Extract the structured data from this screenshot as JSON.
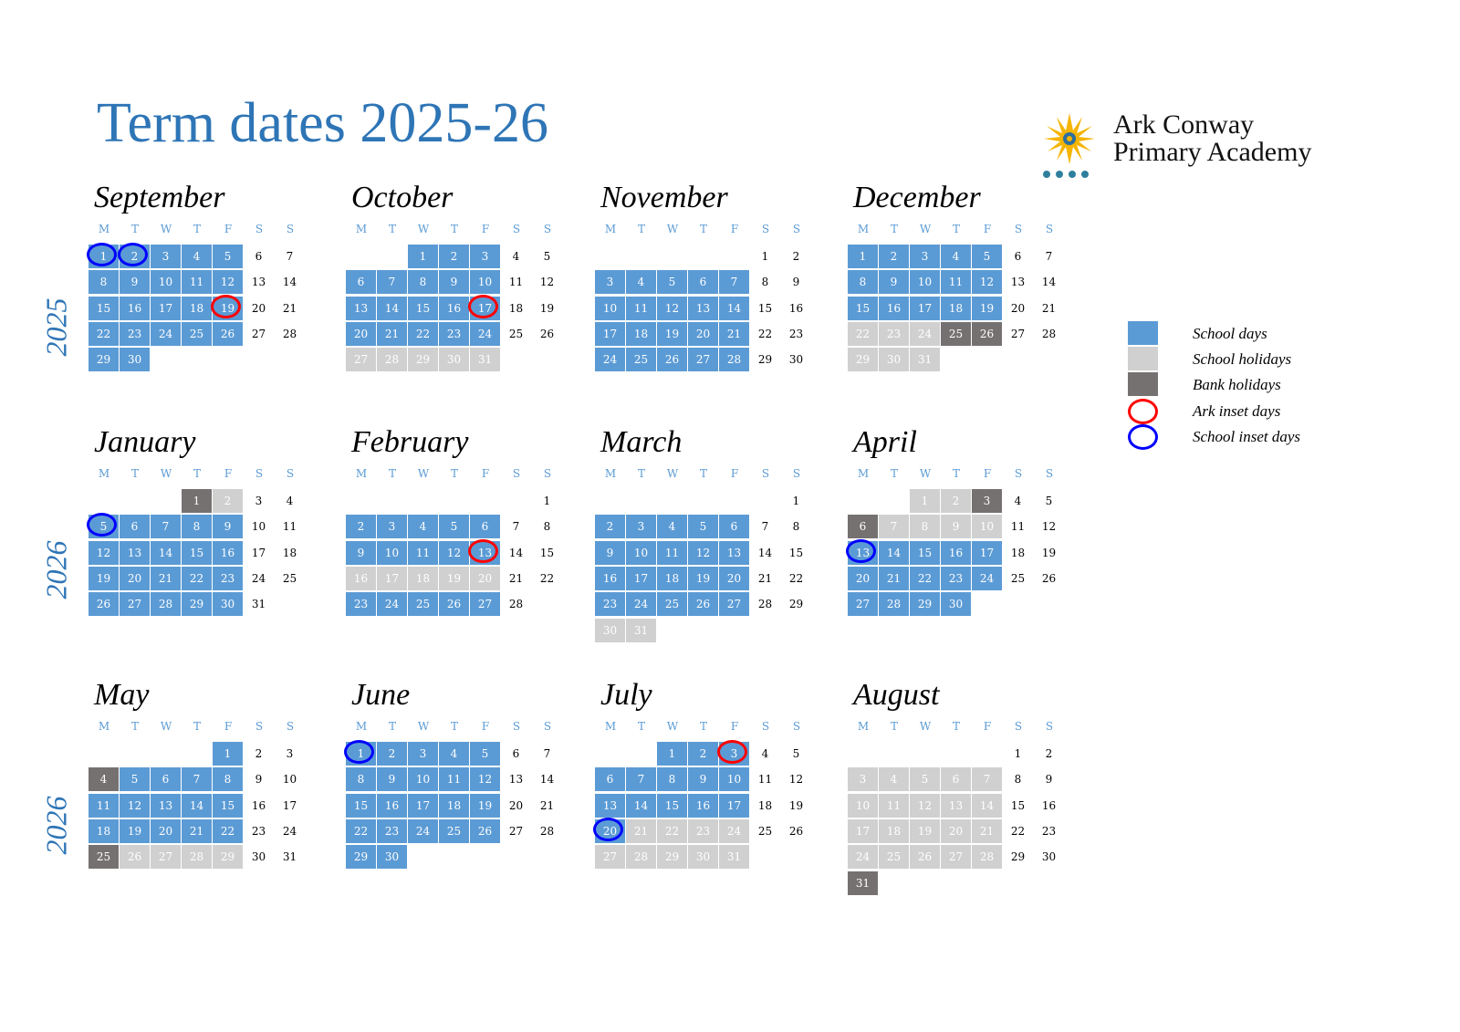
{
  "title": "Term dates 2025-26",
  "logo": {
    "line1": "Ark Conway",
    "line2": "Primary Academy"
  },
  "colors": {
    "school": "#5b9bd5",
    "holiday": "#d0d0d0",
    "bank": "#767171",
    "ark_inset": "#ff0000",
    "school_inset": "#0000ff",
    "title": "#2e75b6"
  },
  "weekdays": [
    "M",
    "T",
    "W",
    "T",
    "F",
    "S",
    "S"
  ],
  "years": [
    "2025",
    "2026",
    "2026"
  ],
  "legend": [
    {
      "label": "School days",
      "type": "school"
    },
    {
      "label": "School holidays",
      "type": "holiday"
    },
    {
      "label": "Bank holidays",
      "type": "bank"
    },
    {
      "label": "Ark inset days",
      "type": "ark_inset"
    },
    {
      "label": "School inset days",
      "type": "school_inset"
    }
  ],
  "months": [
    {
      "name": "September",
      "offset": 0,
      "days": 30,
      "holidays": [],
      "bank": [],
      "ark_inset": [
        19
      ],
      "school_inset": [
        1,
        2
      ]
    },
    {
      "name": "October",
      "offset": 2,
      "days": 31,
      "holidays": [
        27,
        28,
        29,
        30,
        31
      ],
      "bank": [],
      "ark_inset": [
        17
      ],
      "school_inset": []
    },
    {
      "name": "November",
      "offset": 5,
      "days": 30,
      "holidays": [],
      "bank": [],
      "ark_inset": [],
      "school_inset": []
    },
    {
      "name": "December",
      "offset": 0,
      "days": 31,
      "holidays": [
        22,
        23,
        24,
        29,
        30,
        31
      ],
      "bank": [
        25,
        26
      ],
      "ark_inset": [],
      "school_inset": []
    },
    {
      "name": "January",
      "offset": 3,
      "days": 31,
      "holidays": [
        2
      ],
      "bank": [
        1
      ],
      "ark_inset": [],
      "school_inset": [
        5
      ]
    },
    {
      "name": "February",
      "offset": 6,
      "days": 28,
      "holidays": [
        16,
        17,
        18,
        19,
        20
      ],
      "bank": [],
      "ark_inset": [
        13
      ],
      "school_inset": []
    },
    {
      "name": "March",
      "offset": 6,
      "days": 31,
      "holidays": [
        30,
        31
      ],
      "bank": [],
      "ark_inset": [],
      "school_inset": []
    },
    {
      "name": "April",
      "offset": 2,
      "days": 30,
      "holidays": [
        1,
        2,
        7,
        8,
        9,
        10
      ],
      "bank": [
        3,
        6
      ],
      "ark_inset": [],
      "school_inset": [
        13
      ]
    },
    {
      "name": "May",
      "offset": 4,
      "days": 31,
      "holidays": [
        26,
        27,
        28,
        29
      ],
      "bank": [
        4,
        25
      ],
      "ark_inset": [],
      "school_inset": []
    },
    {
      "name": "June",
      "offset": 0,
      "days": 30,
      "holidays": [],
      "bank": [],
      "ark_inset": [],
      "school_inset": [
        1
      ]
    },
    {
      "name": "July",
      "offset": 2,
      "days": 31,
      "holidays": [
        21,
        22,
        23,
        24,
        27,
        28,
        29,
        30,
        31
      ],
      "bank": [],
      "ark_inset": [
        3
      ],
      "school_inset": [
        20
      ]
    },
    {
      "name": "August",
      "offset": 5,
      "days": 31,
      "holidays": [
        3,
        4,
        5,
        6,
        7,
        10,
        11,
        12,
        13,
        14,
        17,
        18,
        19,
        20,
        21,
        24,
        25,
        26,
        27,
        28
      ],
      "bank": [
        31
      ],
      "ark_inset": [],
      "school_inset": []
    }
  ]
}
